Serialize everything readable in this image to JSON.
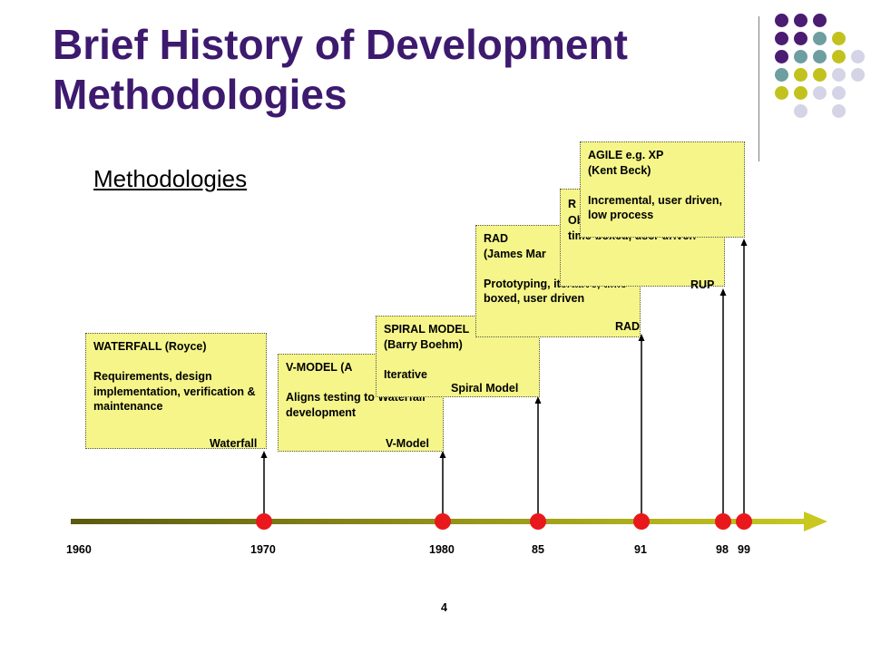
{
  "slide": {
    "title": "Brief History of Development Methodologies",
    "subtitle": "Methodologies",
    "page_number": "4"
  },
  "methodologies": [
    {
      "box_text": "WATERFALL  (Royce)\n\nRequirements, design implementation, verification & maintenance",
      "marker_label": "Waterfall",
      "year": "1970"
    },
    {
      "box_text": "V-MODEL  (A\n\nAligns testing to Waterfall development",
      "marker_label": "V-Model",
      "year": "1980"
    },
    {
      "box_text": "SPIRAL MODEL\n(Barry Boehm)\n\nIterative",
      "marker_label": "Spiral Model",
      "year": "85"
    },
    {
      "box_text": "RAD\n(James Mar\n\nPrototyping, iterative, time-boxed, user driven",
      "marker_label": "RAD",
      "year": "91"
    },
    {
      "box_text": "R\nObject oriented, iterative, time-boxed, user driven",
      "marker_label": "RUP",
      "year": "98"
    },
    {
      "box_text": "AGILE e.g. XP\n(Kent Beck)\n\nIncremental, user driven, low process",
      "marker_label": "",
      "year": "99"
    }
  ],
  "timeline": {
    "start_year": "1960",
    "colors": {
      "start": "#5a5a10",
      "end": "#c8c820",
      "event_dot": "#e8181c"
    }
  },
  "decoration": {
    "dot_colors": [
      "#4a1c72",
      "#6e9ea0",
      "#c2c21e",
      "#d4d4e6"
    ]
  }
}
